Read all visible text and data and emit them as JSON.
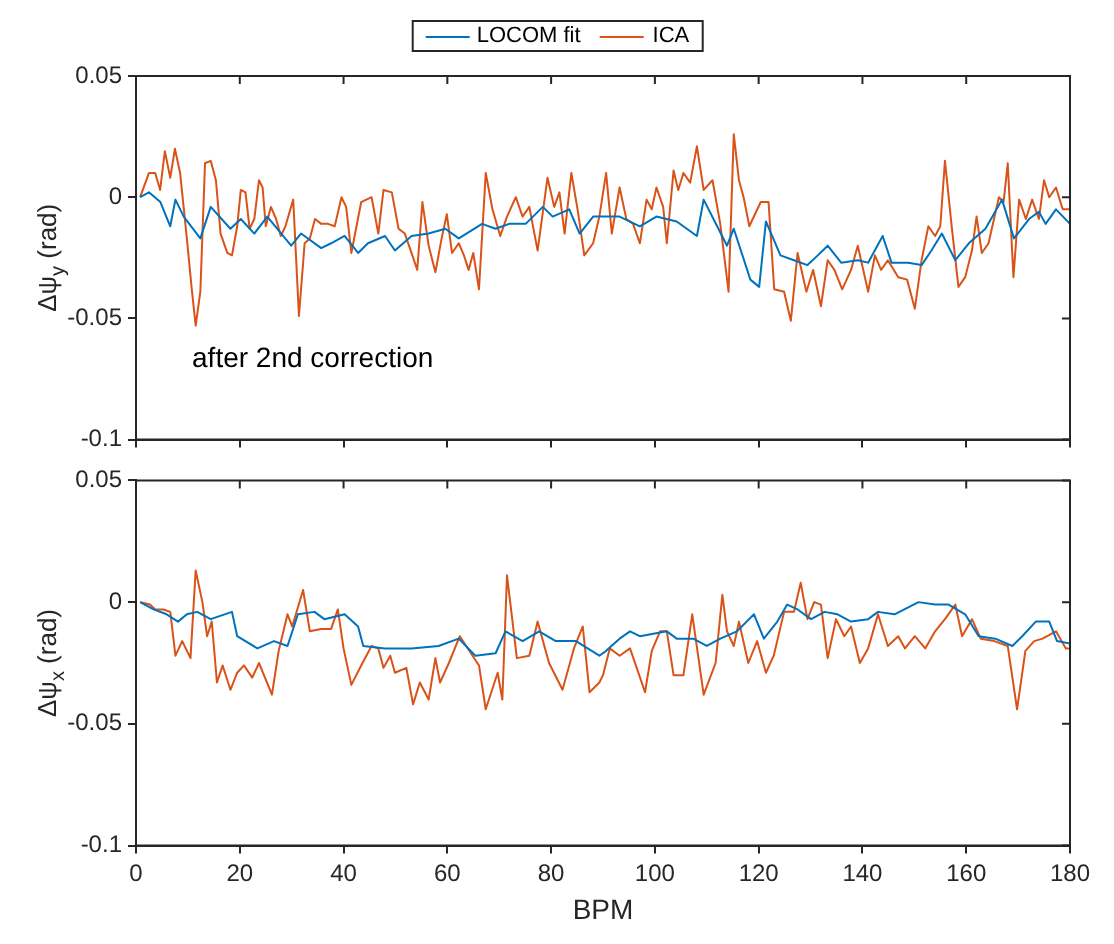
{
  "chart_data": [
    {
      "type": "line",
      "ylabel": "Δψ$_{y}$ (rad)",
      "annotations": [
        "after 2nd correction"
      ],
      "xlim": [
        0,
        180
      ],
      "xticks": [
        0,
        20,
        40,
        60,
        80,
        100,
        120,
        140,
        160,
        180
      ],
      "ylim": [
        -0.1,
        0.05
      ],
      "yticks": [
        -0.1,
        -0.05,
        0,
        0.05
      ],
      "tick_labels": "y",
      "grid": false,
      "legend": "top",
      "marker": "none",
      "line_style": "solid",
      "series": [
        {
          "name": "LOCOM fit",
          "color": "#0072bd",
          "x": [
            0.8,
            2.5,
            4.7,
            6.6,
            7.6,
            9.2,
            12.4,
            14.4,
            18.2,
            20.2,
            22.8,
            25.3,
            29.9,
            31.8,
            35.7,
            37.6,
            40.2,
            42.8,
            44.7,
            48.0,
            49.9,
            53.1,
            56.4,
            59.6,
            62.2,
            66.7,
            69.3,
            71.9,
            75.1,
            78.4,
            80.3,
            83.5,
            85.5,
            88.1,
            91.7,
            93.2,
            97.1,
            100.3,
            104.2,
            108.1,
            109.4,
            112.0,
            113.9,
            115.2,
            118.4,
            120.1,
            121.4,
            124.2,
            126.8,
            129.4,
            131.4,
            133.3,
            135.9,
            139.1,
            141.1,
            143.9,
            145.6,
            148.8,
            151.4,
            153.3,
            155.3,
            157.9,
            160.5,
            163.7,
            166.9,
            169.2,
            172.1,
            174.0,
            175.3,
            177.3,
            180
          ],
          "values": [
            0.0,
            0.002,
            -0.002,
            -0.012,
            -0.001,
            -0.008,
            -0.017,
            -0.004,
            -0.013,
            -0.009,
            -0.015,
            -0.008,
            -0.02,
            -0.015,
            -0.021,
            -0.019,
            -0.016,
            -0.023,
            -0.019,
            -0.016,
            -0.022,
            -0.016,
            -0.015,
            -0.013,
            -0.017,
            -0.011,
            -0.013,
            -0.011,
            -0.011,
            -0.004,
            -0.008,
            -0.005,
            -0.015,
            -0.008,
            -0.008,
            -0.008,
            -0.012,
            -0.008,
            -0.01,
            -0.016,
            -0.001,
            -0.012,
            -0.02,
            -0.013,
            -0.034,
            -0.037,
            -0.01,
            -0.024,
            -0.026,
            -0.028,
            -0.024,
            -0.02,
            -0.027,
            -0.026,
            -0.027,
            -0.016,
            -0.027,
            -0.027,
            -0.028,
            -0.022,
            -0.015,
            -0.026,
            -0.019,
            -0.013,
            -0.001,
            -0.017,
            -0.009,
            -0.006,
            -0.011,
            -0.005,
            -0.011
          ]
        },
        {
          "name": "ICA",
          "color": "#d95319",
          "x": [
            0.8,
            2.5,
            3.7,
            4.65,
            5.56,
            6.6,
            7.5,
            8.5,
            9.8,
            10.7,
            11.5,
            12.4,
            13.3,
            14.4,
            15.4,
            16.3,
            17.6,
            18.5,
            19.5,
            20.2,
            21.1,
            21.9,
            22.8,
            23.7,
            24.4,
            25.0,
            26.0,
            27.0,
            27.9,
            28.8,
            30.3,
            31.4,
            32.5,
            33.5,
            34.5,
            35.7,
            37.0,
            38.3,
            39.6,
            40.5,
            41.5,
            43.4,
            45.4,
            46.7,
            47.7,
            49.3,
            50.6,
            51.8,
            53.1,
            54.2,
            55.2,
            56.4,
            57.7,
            58.9,
            59.9,
            60.9,
            62.2,
            63.2,
            64.1,
            65.0,
            66.1,
            67.4,
            68.7,
            70.2,
            71.5,
            73.2,
            74.5,
            75.8,
            77.4,
            79.3,
            80.6,
            81.6,
            82.6,
            83.9,
            85.1,
            86.4,
            88.1,
            89.3,
            90.6,
            91.7,
            93.2,
            94.5,
            95.8,
            97.1,
            98.4,
            99.4,
            100.3,
            101.6,
            102.3,
            103.6,
            104.5,
            105.5,
            106.8,
            108.1,
            109.4,
            111.1,
            112.6,
            114.2,
            115.2,
            116.2,
            117.1,
            118.2,
            120.4,
            121.9,
            123.0,
            124.9,
            126.2,
            127.5,
            129.2,
            130.5,
            132.0,
            133.3,
            134.6,
            136.1,
            137.8,
            139.1,
            141.1,
            142.4,
            143.6,
            144.9,
            146.9,
            148.6,
            150.1,
            151.4,
            152.7,
            154.0,
            155.0,
            155.9,
            157.2,
            158.5,
            159.8,
            161.1,
            162.0,
            163.0,
            164.3,
            166.3,
            167.2,
            168.0,
            169.1,
            170.2,
            171.5,
            172.7,
            174.0,
            175.0,
            176.0,
            177.3,
            178.6,
            180
          ],
          "values": [
            0.0,
            0.01,
            0.01,
            0.003,
            0.019,
            0.008,
            0.02,
            0.01,
            -0.017,
            -0.037,
            -0.053,
            -0.039,
            0.014,
            0.015,
            0.007,
            -0.015,
            -0.023,
            -0.024,
            -0.012,
            0.003,
            0.002,
            -0.013,
            -0.009,
            0.007,
            0.004,
            -0.012,
            -0.004,
            -0.009,
            -0.016,
            -0.012,
            -0.001,
            -0.049,
            -0.019,
            -0.017,
            -0.009,
            -0.011,
            -0.011,
            -0.012,
            0.0,
            -0.004,
            -0.023,
            -0.002,
            0.0,
            -0.015,
            0.003,
            0.002,
            -0.013,
            -0.015,
            -0.023,
            -0.03,
            -0.002,
            -0.02,
            -0.031,
            -0.017,
            -0.007,
            -0.023,
            -0.019,
            -0.024,
            -0.03,
            -0.023,
            -0.038,
            0.01,
            -0.005,
            -0.016,
            -0.008,
            0.0,
            -0.008,
            -0.004,
            -0.022,
            0.008,
            -0.004,
            0.002,
            -0.015,
            0.01,
            -0.005,
            -0.024,
            -0.019,
            -0.008,
            0.01,
            -0.015,
            0.004,
            -0.009,
            -0.011,
            -0.019,
            -0.001,
            -0.005,
            0.004,
            -0.004,
            -0.019,
            0.011,
            0.003,
            0.01,
            0.006,
            0.021,
            0.003,
            0.007,
            -0.011,
            -0.039,
            0.026,
            0.007,
            0.0,
            -0.012,
            -0.002,
            -0.002,
            -0.038,
            -0.039,
            -0.051,
            -0.023,
            -0.039,
            -0.03,
            -0.045,
            -0.026,
            -0.03,
            -0.038,
            -0.03,
            -0.02,
            -0.039,
            -0.024,
            -0.03,
            -0.026,
            -0.033,
            -0.034,
            -0.046,
            -0.026,
            -0.012,
            -0.016,
            -0.012,
            0.015,
            -0.012,
            -0.037,
            -0.033,
            -0.022,
            -0.008,
            -0.023,
            -0.019,
            0.0,
            -0.002,
            0.014,
            -0.033,
            -0.001,
            -0.009,
            -0.001,
            -0.009,
            0.007,
            0.0,
            0.004,
            -0.005,
            -0.005
          ]
        }
      ]
    },
    {
      "type": "line",
      "xlabel": "BPM",
      "ylabel": "Δψ$_{x}$ (rad)",
      "xlim": [
        0,
        180
      ],
      "xticks": [
        0,
        20,
        40,
        60,
        80,
        100,
        120,
        140,
        160,
        180
      ],
      "ylim": [
        -0.1,
        0.05
      ],
      "yticks": [
        -0.1,
        -0.05,
        0,
        0.05
      ],
      "grid": false,
      "marker": "none",
      "line_style": "solid",
      "series": [
        {
          "color": "#0072bd",
          "x": [
            0.8,
            3.4,
            5.9,
            8.1,
            9.8,
            11.8,
            14.4,
            18.5,
            19.5,
            23.4,
            26.6,
            29.2,
            31.2,
            34.4,
            36.3,
            40.2,
            42.8,
            43.8,
            48.0,
            53.1,
            58.3,
            62.2,
            65.4,
            69.3,
            71.2,
            74.5,
            77.7,
            80.9,
            84.8,
            89.3,
            90.6,
            93.2,
            95.2,
            97.1,
            99.7,
            102.3,
            104.2,
            107.4,
            110.0,
            112.6,
            115.8,
            119.1,
            121.0,
            123.6,
            125.5,
            127.5,
            130.1,
            132.7,
            135.2,
            137.8,
            141.1,
            143.0,
            146.2,
            150.8,
            154.0,
            156.6,
            159.8,
            162.4,
            165.6,
            168.9,
            170.8,
            173.4,
            176.0,
            177.5,
            180
          ],
          "values": [
            0.0,
            -0.003,
            -0.005,
            -0.008,
            -0.005,
            -0.004,
            -0.007,
            -0.004,
            -0.014,
            -0.019,
            -0.016,
            -0.018,
            -0.005,
            -0.004,
            -0.007,
            -0.005,
            -0.01,
            -0.018,
            -0.019,
            -0.019,
            -0.018,
            -0.015,
            -0.022,
            -0.021,
            -0.012,
            -0.016,
            -0.012,
            -0.016,
            -0.016,
            -0.022,
            -0.02,
            -0.015,
            -0.012,
            -0.014,
            -0.013,
            -0.012,
            -0.015,
            -0.015,
            -0.018,
            -0.015,
            -0.012,
            -0.005,
            -0.015,
            -0.008,
            -0.001,
            -0.003,
            -0.007,
            -0.004,
            -0.005,
            -0.008,
            -0.007,
            -0.004,
            -0.005,
            0.0,
            -0.001,
            -0.001,
            -0.005,
            -0.014,
            -0.015,
            -0.018,
            -0.014,
            -0.008,
            -0.008,
            -0.016,
            -0.017
          ]
        },
        {
          "color": "#d95319",
          "x": [
            0.8,
            2.7,
            3.7,
            5.3,
            6.6,
            7.6,
            8.9,
            10.5,
            11.5,
            12.8,
            13.7,
            14.6,
            15.6,
            16.7,
            18.2,
            19.5,
            20.8,
            22.4,
            23.7,
            26.2,
            27.5,
            29.2,
            30.1,
            32.2,
            33.5,
            35.7,
            37.6,
            38.9,
            40.0,
            41.5,
            43.4,
            45.4,
            46.7,
            47.7,
            49.0,
            49.9,
            52.1,
            53.4,
            54.7,
            56.4,
            57.7,
            58.6,
            60.3,
            62.4,
            66.1,
            67.4,
            69.7,
            70.6,
            71.5,
            73.4,
            75.8,
            77.4,
            79.6,
            82.2,
            84.4,
            86.1,
            87.4,
            89.3,
            90.0,
            91.3,
            93.2,
            95.2,
            96.5,
            98.1,
            99.4,
            101.0,
            102.3,
            103.6,
            105.5,
            107.2,
            109.4,
            111.7,
            113.0,
            113.9,
            115.2,
            116.2,
            118.0,
            119.7,
            121.4,
            122.9,
            124.9,
            126.8,
            128.1,
            129.4,
            130.7,
            132.0,
            133.3,
            134.9,
            136.5,
            137.8,
            139.5,
            141.1,
            143.0,
            144.9,
            146.9,
            148.2,
            150.1,
            152.1,
            154.0,
            155.9,
            157.9,
            159.2,
            161.1,
            162.8,
            165.4,
            168.0,
            169.8,
            171.4,
            173.1,
            174.7,
            177.3,
            179.2,
            180
          ],
          "values": [
            0.0,
            -0.001,
            -0.003,
            -0.003,
            -0.004,
            -0.022,
            -0.016,
            -0.023,
            0.013,
            0.0,
            -0.014,
            -0.008,
            -0.033,
            -0.026,
            -0.036,
            -0.029,
            -0.026,
            -0.031,
            -0.025,
            -0.038,
            -0.02,
            -0.005,
            -0.01,
            0.005,
            -0.012,
            -0.011,
            -0.011,
            -0.003,
            -0.019,
            -0.034,
            -0.026,
            -0.018,
            -0.019,
            -0.027,
            -0.022,
            -0.029,
            -0.027,
            -0.042,
            -0.033,
            -0.04,
            -0.023,
            -0.033,
            -0.025,
            -0.014,
            -0.026,
            -0.044,
            -0.029,
            -0.04,
            0.011,
            -0.023,
            -0.022,
            -0.008,
            -0.025,
            -0.036,
            -0.019,
            -0.01,
            -0.037,
            -0.033,
            -0.03,
            -0.019,
            -0.022,
            -0.019,
            -0.027,
            -0.037,
            -0.02,
            -0.012,
            -0.012,
            -0.03,
            -0.03,
            -0.005,
            -0.038,
            -0.025,
            0.003,
            -0.012,
            -0.018,
            -0.008,
            -0.025,
            -0.016,
            -0.029,
            -0.022,
            -0.004,
            -0.004,
            0.008,
            -0.007,
            0.0,
            -0.001,
            -0.023,
            -0.007,
            -0.014,
            -0.01,
            -0.025,
            -0.019,
            -0.005,
            -0.018,
            -0.014,
            -0.019,
            -0.014,
            -0.019,
            -0.012,
            -0.007,
            -0.001,
            -0.014,
            -0.007,
            -0.015,
            -0.016,
            -0.018,
            -0.044,
            -0.02,
            -0.016,
            -0.015,
            -0.012,
            -0.019,
            -0.019
          ]
        }
      ]
    }
  ]
}
